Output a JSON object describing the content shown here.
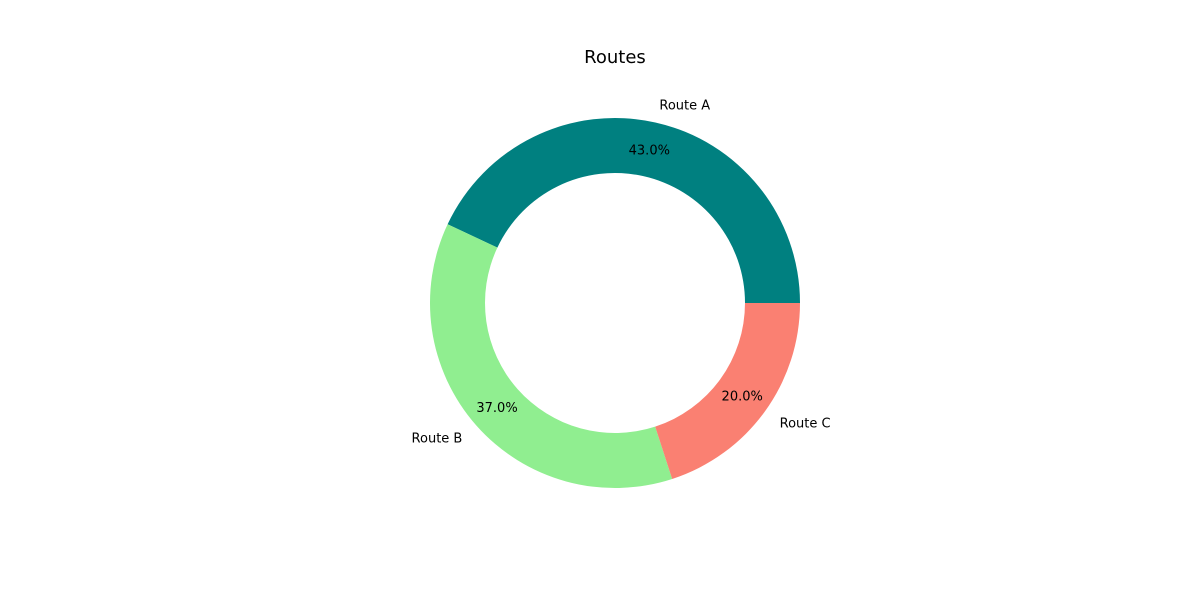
{
  "chart_data": {
    "type": "pie",
    "title": "Routes",
    "donut": true,
    "start_angle_deg": 0,
    "direction": "counterclockwise",
    "categories": [
      "Route A",
      "Route B",
      "Route C"
    ],
    "values": [
      43.0,
      37.0,
      20.0
    ],
    "percent_labels": [
      "43.0%",
      "37.0%",
      "20.0%"
    ],
    "colors": [
      "#008080",
      "#90ee90",
      "#fa8072"
    ]
  }
}
